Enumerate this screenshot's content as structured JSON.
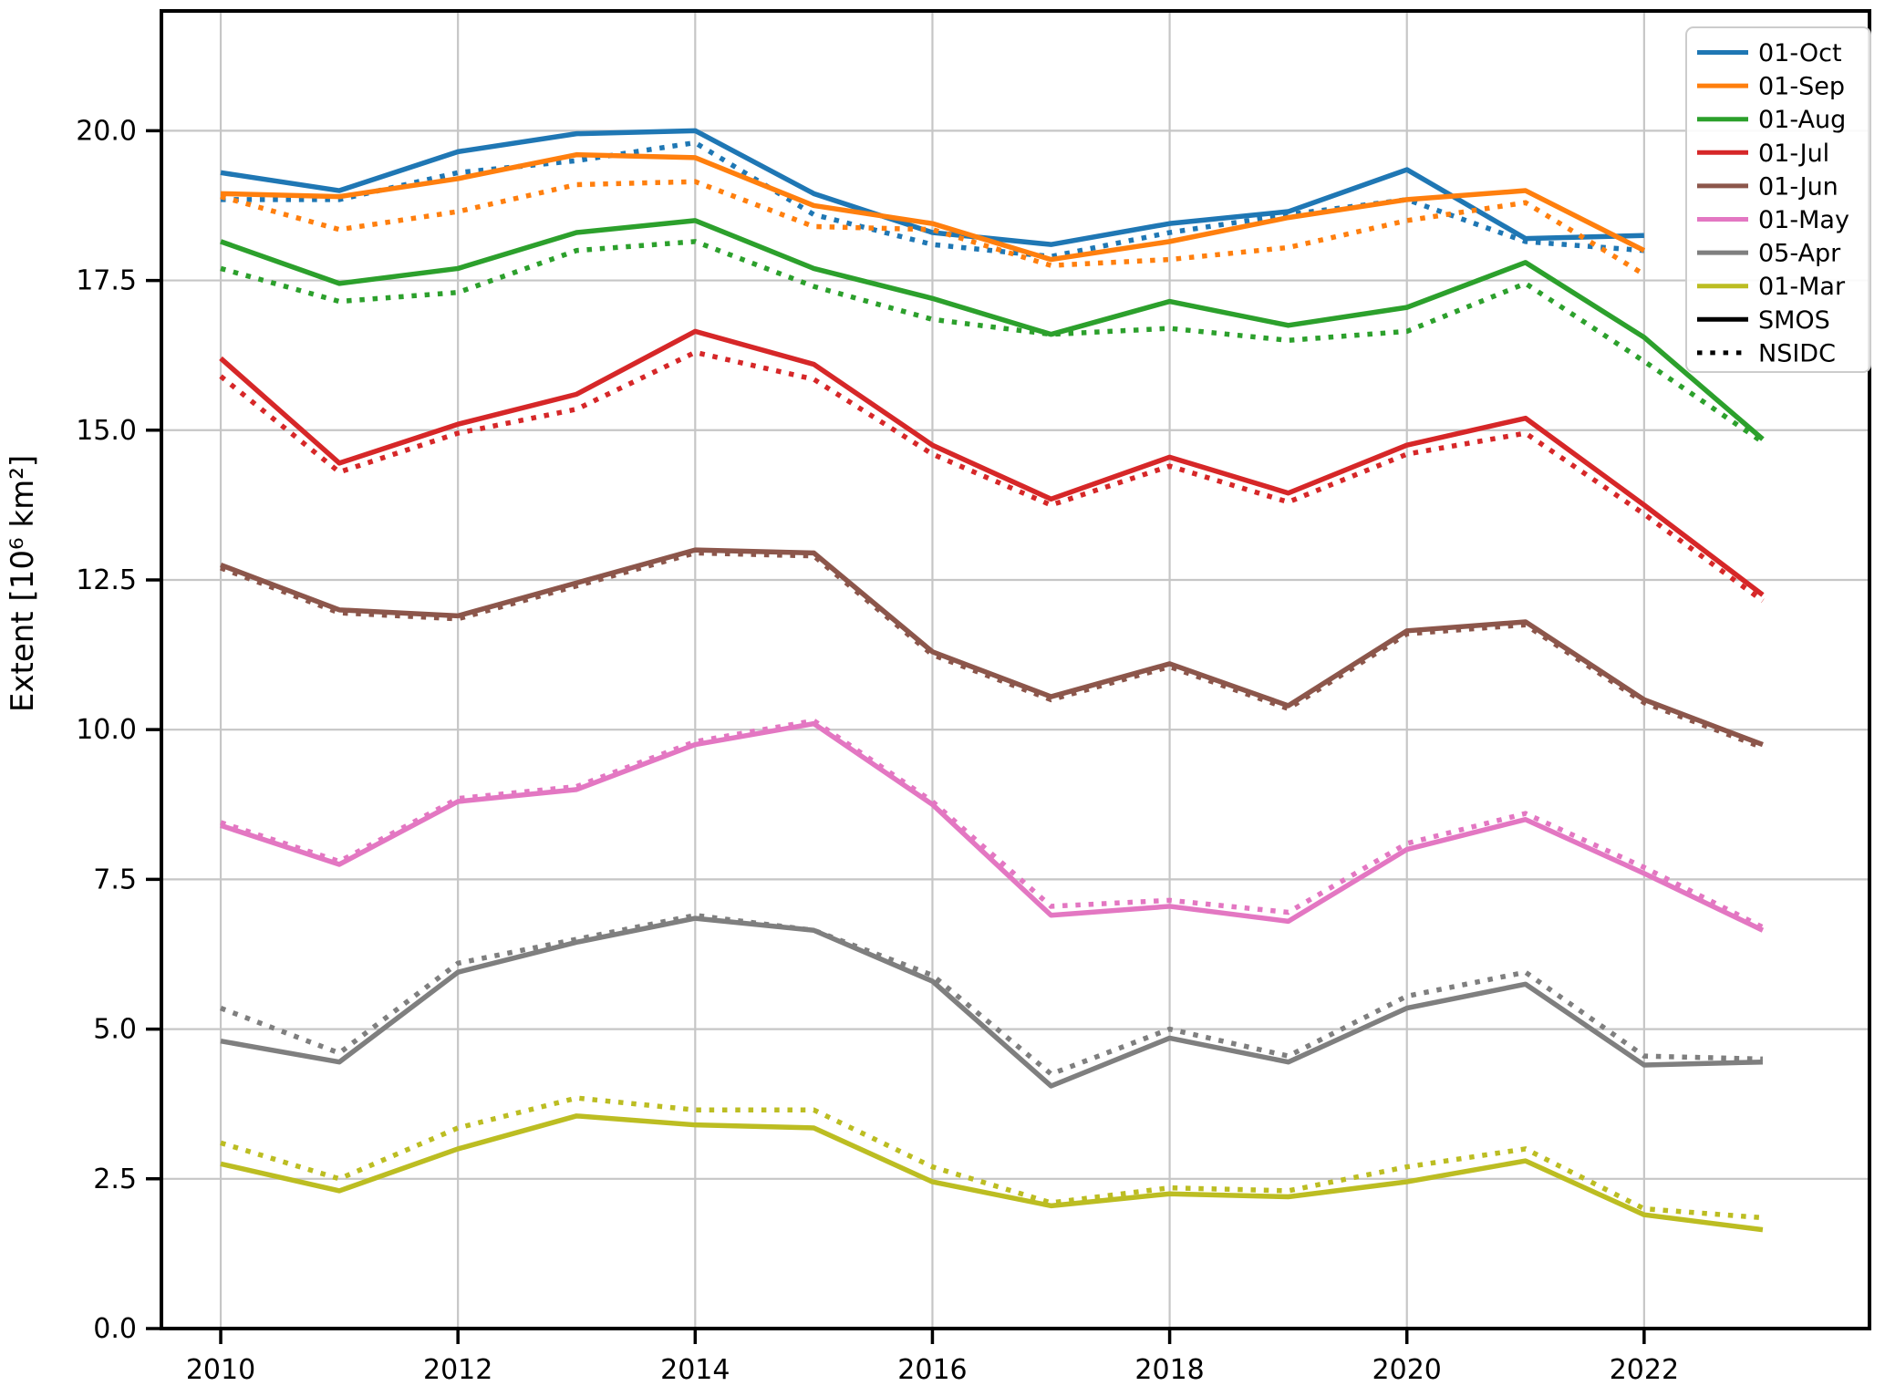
{
  "chart_data": {
    "type": "line",
    "title": "",
    "xlabel": "",
    "ylabel": "Extent [10⁶ km²]",
    "grid": true,
    "legend_position": "upper right",
    "xlim": [
      2009.5,
      2023.9
    ],
    "ylim": [
      0,
      22
    ],
    "xticks": [
      2010,
      2012,
      2014,
      2016,
      2018,
      2020,
      2022
    ],
    "xtick_labels": [
      "2010",
      "2012",
      "2014",
      "2016",
      "2018",
      "2020",
      "2022"
    ],
    "yticks": [
      0,
      2.5,
      5,
      7.5,
      10,
      12.5,
      15,
      17.5,
      20
    ],
    "ytick_labels": [
      "0.0",
      "2.5",
      "5.0",
      "7.5",
      "10.0",
      "12.5",
      "15.0",
      "17.5",
      "20.0"
    ],
    "x": [
      2010,
      2011,
      2012,
      2013,
      2014,
      2015,
      2016,
      2017,
      2018,
      2019,
      2020,
      2021,
      2022,
      2023
    ],
    "variant_labels": {
      "solid": "SMOS",
      "dotted": "NSIDC"
    },
    "legend_style_entries": [
      {
        "label": "SMOS",
        "style": "solid",
        "color": "#000000"
      },
      {
        "label": "NSIDC",
        "style": "dotted",
        "color": "#000000"
      }
    ],
    "series": [
      {
        "name": "01-Oct",
        "color": "#1f77b4",
        "smos": [
          19.3,
          19.0,
          19.65,
          19.95,
          20.0,
          18.95,
          18.3,
          18.1,
          18.45,
          18.65,
          19.35,
          18.2,
          18.25,
          null
        ],
        "nsidc": [
          18.85,
          18.85,
          19.3,
          19.5,
          19.8,
          18.6,
          18.1,
          17.9,
          18.3,
          18.6,
          18.85,
          18.15,
          18.0,
          null
        ]
      },
      {
        "name": "01-Sep",
        "color": "#ff7f0e",
        "smos": [
          18.95,
          18.9,
          19.2,
          19.6,
          19.55,
          18.75,
          18.45,
          17.85,
          18.15,
          18.55,
          18.85,
          19.0,
          18.0,
          null
        ],
        "nsidc": [
          18.9,
          18.35,
          18.65,
          19.1,
          19.15,
          18.4,
          18.35,
          17.75,
          17.85,
          18.05,
          18.5,
          18.8,
          17.6,
          null
        ]
      },
      {
        "name": "01-Aug",
        "color": "#2ca02c",
        "smos": [
          18.15,
          17.45,
          17.7,
          18.3,
          18.5,
          17.7,
          17.2,
          16.6,
          17.15,
          16.75,
          17.05,
          17.8,
          16.55,
          14.85
        ],
        "nsidc": [
          17.7,
          17.15,
          17.3,
          18.0,
          18.15,
          17.4,
          16.85,
          16.6,
          16.7,
          16.5,
          16.65,
          17.45,
          16.15,
          14.8
        ]
      },
      {
        "name": "01-Jul",
        "color": "#d62728",
        "smos": [
          16.2,
          14.45,
          15.1,
          15.6,
          16.65,
          16.1,
          14.75,
          13.85,
          14.55,
          13.95,
          14.75,
          15.2,
          13.75,
          12.25
        ],
        "nsidc": [
          15.9,
          14.3,
          14.95,
          15.35,
          16.3,
          15.85,
          14.6,
          13.75,
          14.4,
          13.8,
          14.6,
          14.95,
          13.6,
          12.15
        ]
      },
      {
        "name": "01-Jun",
        "color": "#8c564b",
        "smos": [
          12.75,
          12.0,
          11.9,
          12.45,
          13.0,
          12.95,
          11.3,
          10.55,
          11.1,
          10.4,
          11.65,
          11.8,
          10.5,
          9.75
        ],
        "nsidc": [
          12.7,
          11.95,
          11.85,
          12.4,
          12.95,
          12.9,
          11.25,
          10.5,
          11.05,
          10.35,
          11.6,
          11.75,
          10.45,
          9.7
        ]
      },
      {
        "name": "01-May",
        "color": "#e377c2",
        "smos": [
          8.4,
          7.75,
          8.8,
          9.0,
          9.75,
          10.1,
          8.75,
          6.9,
          7.05,
          6.8,
          8.0,
          8.5,
          7.6,
          6.65
        ],
        "nsidc": [
          8.45,
          7.8,
          8.85,
          9.05,
          9.8,
          10.15,
          8.8,
          7.05,
          7.15,
          6.95,
          8.1,
          8.6,
          7.7,
          6.7
        ]
      },
      {
        "name": "05-Apr",
        "color": "#7f7f7f",
        "smos": [
          4.8,
          4.45,
          5.95,
          6.45,
          6.85,
          6.65,
          5.8,
          4.05,
          4.85,
          4.45,
          5.35,
          5.75,
          4.4,
          4.45
        ],
        "nsidc": [
          5.35,
          4.6,
          6.1,
          6.5,
          6.9,
          6.65,
          5.9,
          4.25,
          5.0,
          4.55,
          5.55,
          5.95,
          4.55,
          4.5
        ]
      },
      {
        "name": "01-Mar",
        "color": "#bcbd22",
        "smos": [
          2.75,
          2.3,
          3.0,
          3.55,
          3.4,
          3.35,
          2.45,
          2.05,
          2.25,
          2.2,
          2.45,
          2.8,
          1.9,
          1.65
        ],
        "nsidc": [
          3.1,
          2.5,
          3.35,
          3.85,
          3.65,
          3.65,
          2.7,
          2.1,
          2.35,
          2.3,
          2.7,
          3.0,
          2.0,
          1.85
        ]
      }
    ],
    "colors": {
      "grid": "#c6c6c6",
      "spine": "#000000",
      "legend_border": "#cccccc",
      "legend_bg": "#ffffff"
    }
  }
}
